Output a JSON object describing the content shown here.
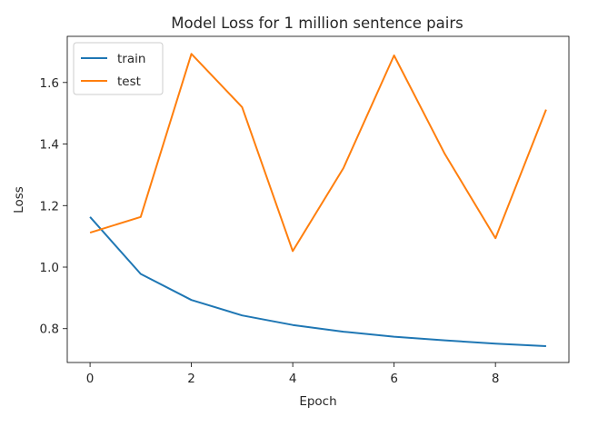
{
  "chart_data": {
    "type": "line",
    "title": "Model Loss for 1 million sentence pairs",
    "xlabel": "Epoch",
    "ylabel": "Loss",
    "x": [
      0,
      1,
      2,
      3,
      4,
      5,
      6,
      7,
      8,
      9
    ],
    "xlim": [
      -0.45,
      9.45
    ],
    "ylim": [
      0.69,
      1.75
    ],
    "xticks": [
      0,
      2,
      4,
      6,
      8
    ],
    "yticks": [
      0.8,
      1.0,
      1.2,
      1.4,
      1.6
    ],
    "xtick_labels": [
      "0",
      "2",
      "4",
      "6",
      "8"
    ],
    "ytick_labels": [
      "0.8",
      "1.0",
      "1.2",
      "1.4",
      "1.6"
    ],
    "grid": false,
    "legend_position": "top-left",
    "series": [
      {
        "name": "train",
        "color": "#1f77b4",
        "values": [
          1.163,
          0.978,
          0.893,
          0.843,
          0.812,
          0.79,
          0.774,
          0.762,
          0.751,
          0.743
        ]
      },
      {
        "name": "test",
        "color": "#ff7f0e",
        "values": [
          1.112,
          1.163,
          1.693,
          1.52,
          1.052,
          1.322,
          1.688,
          1.368,
          1.094,
          1.512
        ]
      }
    ]
  }
}
